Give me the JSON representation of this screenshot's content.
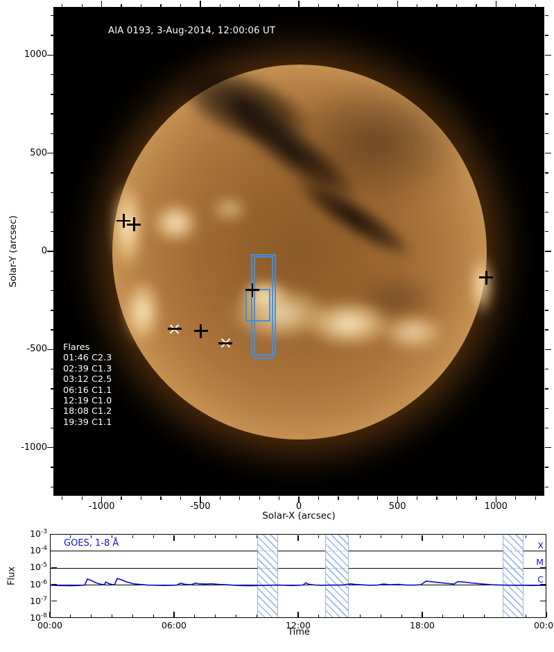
{
  "colors": {
    "flare_box": "#4190e0",
    "goes_line": "#1414cc",
    "goes_text": "#1414cc",
    "hatch": "#7da0d7",
    "marker": "#000000"
  },
  "chart_data": [
    {
      "type": "image-map",
      "title": "AIA 0193, 3-Aug-2014, 12:00:06 UT",
      "xlabel": "Solar-X (arcsec)",
      "ylabel": "Solar-Y (arcsec)",
      "xlim": [
        -1245,
        1245
      ],
      "ylim": [
        -1245,
        1245
      ],
      "xticks": [
        -1000,
        -500,
        0,
        500,
        1000
      ],
      "yticks": [
        -1000,
        -500,
        0,
        500,
        1000
      ],
      "minor_tick_step": 100,
      "flares_header": "Flares",
      "flares": [
        "01:46 C2.3",
        "02:39 C1.3",
        "03:12 C2.5",
        "06:16 C1.1",
        "12:19 C1.0",
        "18:08 C1.2",
        "19:39 C1.1"
      ],
      "markers": [
        {
          "x": -892,
          "y": 159,
          "shape": "plus"
        },
        {
          "x": -840,
          "y": 141,
          "shape": "plus"
        },
        {
          "x": 947,
          "y": -130,
          "shape": "plus"
        },
        {
          "x": -634,
          "y": -391,
          "shape": "asterisk"
        },
        {
          "x": -501,
          "y": -402,
          "shape": "plus"
        },
        {
          "x": -375,
          "y": -465,
          "shape": "asterisk"
        },
        {
          "x": -239,
          "y": -194,
          "shape": "plus"
        }
      ],
      "boxes": [
        {
          "x1": -246,
          "y1": -11,
          "x2": -120,
          "y2": -527
        },
        {
          "x1": -232,
          "y1": -21,
          "x2": -134,
          "y2": -545
        },
        {
          "x1": -274,
          "y1": -187,
          "x2": -148,
          "y2": -354
        }
      ]
    },
    {
      "type": "line",
      "series": [
        {
          "name": "GOES, 1-8 Å",
          "points": [
            [
              0,
              9.7e-07
            ],
            [
              0.5,
              9.4e-07
            ],
            [
              1.0,
              9.2e-07
            ],
            [
              1.4,
              9.5e-07
            ],
            [
              1.65,
              1e-06
            ],
            [
              1.78,
              2.3e-06
            ],
            [
              1.95,
              1.9e-06
            ],
            [
              2.2,
              1.35e-06
            ],
            [
              2.45,
              1.1e-06
            ],
            [
              2.6,
              1.05e-06
            ],
            [
              2.66,
              1.5e-06
            ],
            [
              2.8,
              1.25e-06
            ],
            [
              3.0,
              1.05e-06
            ],
            [
              3.1,
              1.1e-06
            ],
            [
              3.22,
              2.5e-06
            ],
            [
              3.45,
              2e-06
            ],
            [
              3.7,
              1.5e-06
            ],
            [
              4.0,
              1.2e-06
            ],
            [
              4.3,
              1.1e-06
            ],
            [
              4.7,
              1e-06
            ],
            [
              5.1,
              9.7e-07
            ],
            [
              5.5,
              9.5e-07
            ],
            [
              5.9,
              9.7e-07
            ],
            [
              6.1,
              1e-06
            ],
            [
              6.28,
              1.3e-06
            ],
            [
              6.5,
              1.1e-06
            ],
            [
              6.8,
              1.05e-06
            ],
            [
              7.0,
              1.3e-06
            ],
            [
              7.15,
              1.2e-06
            ],
            [
              7.5,
              1.15e-06
            ],
            [
              7.8,
              1.2e-06
            ],
            [
              8.1,
              1.1e-06
            ],
            [
              8.5,
              1.05e-06
            ],
            [
              8.9,
              9.7e-07
            ],
            [
              9.3,
              9.3e-07
            ],
            [
              9.7,
              9.2e-07
            ],
            [
              10.1,
              9.5e-07
            ],
            [
              10.6,
              9.7e-07
            ],
            [
              11.0,
              1e-06
            ],
            [
              11.3,
              9.7e-07
            ],
            [
              11.7,
              9.4e-07
            ],
            [
              12.0,
              9.7e-07
            ],
            [
              12.2,
              1e-06
            ],
            [
              12.33,
              1.35e-06
            ],
            [
              12.5,
              1.1e-06
            ],
            [
              12.8,
              1e-06
            ],
            [
              13.1,
              9.7e-07
            ],
            [
              13.6,
              1e-06
            ],
            [
              14.1,
              1e-06
            ],
            [
              14.5,
              1.2e-06
            ],
            [
              14.7,
              1.1e-06
            ],
            [
              15.0,
              1.05e-06
            ],
            [
              15.4,
              9.7e-07
            ],
            [
              15.8,
              1e-06
            ],
            [
              16.1,
              1.15e-06
            ],
            [
              16.4,
              1.05e-06
            ],
            [
              16.8,
              1.1e-06
            ],
            [
              17.2,
              1e-06
            ],
            [
              17.6,
              1e-06
            ],
            [
              17.9,
              1.05e-06
            ],
            [
              18.15,
              1.7e-06
            ],
            [
              18.4,
              1.6e-06
            ],
            [
              18.8,
              1.4e-06
            ],
            [
              19.2,
              1.25e-06
            ],
            [
              19.5,
              1.15e-06
            ],
            [
              19.68,
              1.6e-06
            ],
            [
              20.0,
              1.5e-06
            ],
            [
              20.4,
              1.3e-06
            ],
            [
              20.9,
              1.15e-06
            ],
            [
              21.3,
              1.05e-06
            ],
            [
              21.8,
              1e-06
            ],
            [
              22.3,
              9.7e-07
            ],
            [
              22.8,
              9.7e-07
            ],
            [
              23.2,
              9.5e-07
            ],
            [
              23.6,
              9.6e-07
            ],
            [
              24,
              9.5e-07
            ]
          ]
        }
      ],
      "xlabel": "Time",
      "ylabel": "Flux",
      "x_hours_range": [
        0,
        24
      ],
      "xticks_hours": [
        0,
        6,
        12,
        18,
        24
      ],
      "xtick_labels": [
        "00:00",
        "06:00",
        "12:00",
        "18:00",
        "00:00"
      ],
      "y_exp_range": [
        -8,
        -3
      ],
      "ytick_exponents": [
        -3,
        -4,
        -5,
        -6,
        -7,
        -8
      ],
      "flare_class_lines": [
        {
          "label": "X",
          "flux": 0.0001
        },
        {
          "label": "M",
          "flux": 1e-05
        },
        {
          "label": "C",
          "flux": 1e-06
        }
      ],
      "data_gaps_hours": [
        [
          10.0,
          11.0
        ],
        [
          13.27,
          14.4
        ],
        [
          21.85,
          22.85
        ]
      ]
    }
  ]
}
